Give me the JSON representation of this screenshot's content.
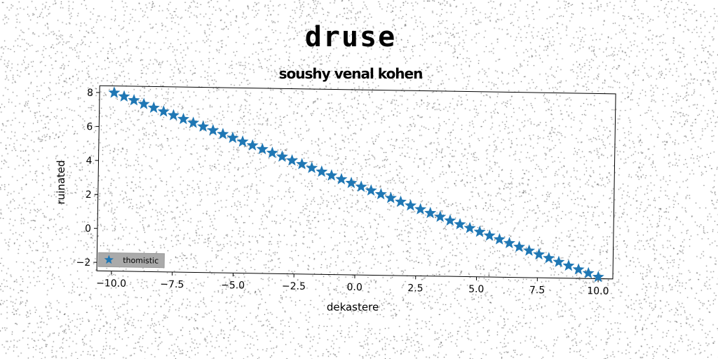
{
  "header": {
    "title": "druse",
    "subtitle": "soushy venal kohen"
  },
  "chart_data": {
    "type": "scatter",
    "title": "soushy venal kohen",
    "xlabel": "dekastere",
    "ylabel": "ruinated",
    "xlim": [
      -10.6,
      10.6
    ],
    "ylim": [
      -2.5,
      8.4
    ],
    "xticks": [
      -10.0,
      -7.5,
      -5.0,
      -2.5,
      0.0,
      2.5,
      5.0,
      7.5,
      10.0
    ],
    "xtick_labels": [
      "−10.0",
      "−7.5",
      "−5.0",
      "−2.5",
      "0.0",
      "2.5",
      "5.0",
      "7.5",
      "10.0"
    ],
    "yticks": [
      -2,
      0,
      2,
      4,
      6,
      8
    ],
    "ytick_labels": [
      "−2",
      "0",
      "2",
      "4",
      "6",
      "8"
    ],
    "grid": false,
    "legend_position": "lower-left",
    "series": [
      {
        "name": "thomistic",
        "marker": "star",
        "color": "#1f77b4",
        "x_start": -10.0,
        "x_end": 10.0,
        "num_points": 50,
        "slope": -0.52,
        "intercept": 2.8
      }
    ]
  }
}
